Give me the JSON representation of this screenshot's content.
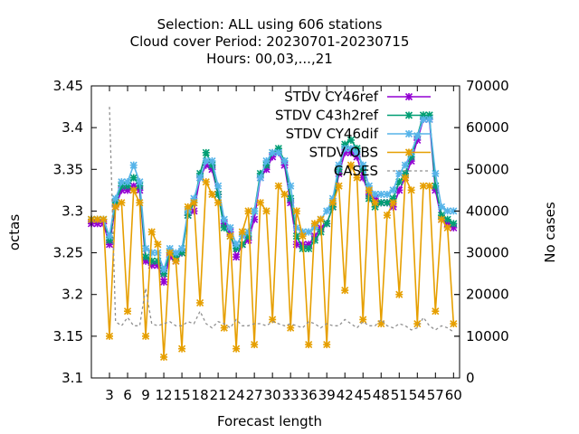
{
  "chart_data": {
    "type": "line",
    "title_lines": [
      "Selection: ALL using   606 stations",
      "Cloud cover   Period: 20230701-20230715",
      "Hours:  00,03,...,21"
    ],
    "xlabel": "Forecast length",
    "ylabel": "octas",
    "y2label": "No cases",
    "xlim": [
      0,
      61
    ],
    "ylim": [
      3.1,
      3.45
    ],
    "y2lim": [
      0,
      70000
    ],
    "xticks": [
      3,
      6,
      9,
      12,
      15,
      18,
      21,
      24,
      27,
      30,
      33,
      36,
      39,
      42,
      45,
      48,
      51,
      54,
      57,
      60
    ],
    "yticks": [
      3.1,
      3.15,
      3.2,
      3.25,
      3.3,
      3.35,
      3.4,
      3.45
    ],
    "ytick_labels": [
      "3.1",
      "3.15",
      "3.2",
      "3.25",
      "3.3",
      "3.35",
      "3.4",
      "3.45"
    ],
    "y2ticks": [
      0,
      10000,
      20000,
      30000,
      40000,
      50000,
      60000,
      70000
    ],
    "grid": false,
    "legend_position": "top-right",
    "x": [
      0,
      1,
      2,
      3,
      4,
      5,
      6,
      7,
      8,
      9,
      10,
      11,
      12,
      13,
      14,
      15,
      16,
      17,
      18,
      19,
      20,
      21,
      22,
      23,
      24,
      25,
      26,
      27,
      28,
      29,
      30,
      31,
      32,
      33,
      34,
      35,
      36,
      37,
      38,
      39,
      40,
      41,
      42,
      43,
      44,
      45,
      46,
      47,
      48,
      49,
      50,
      51,
      52,
      53,
      54,
      55,
      56,
      57,
      58,
      59,
      60
    ],
    "series": [
      {
        "name": "STDV CY46ref",
        "color": "#9400d3",
        "marker": "x",
        "axis": "y",
        "values": [
          3.285,
          3.285,
          3.285,
          3.26,
          3.305,
          3.325,
          3.325,
          3.33,
          3.325,
          3.24,
          3.235,
          3.235,
          3.215,
          3.245,
          3.24,
          3.25,
          3.295,
          3.3,
          3.34,
          3.355,
          3.35,
          3.32,
          3.285,
          3.275,
          3.245,
          3.26,
          3.265,
          3.29,
          3.34,
          3.35,
          3.365,
          3.37,
          3.355,
          3.31,
          3.26,
          3.26,
          3.26,
          3.27,
          3.28,
          3.285,
          3.305,
          3.345,
          3.37,
          3.37,
          3.365,
          3.34,
          3.32,
          3.315,
          3.31,
          3.31,
          3.305,
          3.325,
          3.34,
          3.36,
          3.385,
          3.41,
          3.41,
          3.325,
          3.29,
          3.285,
          3.28
        ]
      },
      {
        "name": "STDV C43h2ref",
        "color": "#009e73",
        "marker": "x",
        "axis": "y",
        "values": [
          3.29,
          3.29,
          3.29,
          3.265,
          3.31,
          3.33,
          3.33,
          3.34,
          3.33,
          3.245,
          3.24,
          3.24,
          3.225,
          3.25,
          3.245,
          3.25,
          3.295,
          3.31,
          3.345,
          3.37,
          3.355,
          3.32,
          3.28,
          3.27,
          3.255,
          3.26,
          3.27,
          3.3,
          3.345,
          3.355,
          3.37,
          3.375,
          3.36,
          3.315,
          3.27,
          3.255,
          3.255,
          3.265,
          3.275,
          3.285,
          3.305,
          3.35,
          3.38,
          3.385,
          3.375,
          3.35,
          3.315,
          3.305,
          3.31,
          3.31,
          3.315,
          3.335,
          3.345,
          3.365,
          3.39,
          3.415,
          3.415,
          3.33,
          3.295,
          3.29,
          3.285
        ]
      },
      {
        "name": "STDV CY46dif",
        "color": "#56b4e9",
        "marker": "x",
        "axis": "y",
        "values": [
          3.29,
          3.29,
          3.29,
          3.27,
          3.315,
          3.335,
          3.335,
          3.355,
          3.335,
          3.255,
          3.25,
          3.25,
          3.23,
          3.255,
          3.25,
          3.255,
          3.3,
          3.315,
          3.34,
          3.36,
          3.36,
          3.33,
          3.29,
          3.28,
          3.26,
          3.27,
          3.275,
          3.3,
          3.34,
          3.36,
          3.37,
          3.37,
          3.36,
          3.33,
          3.28,
          3.275,
          3.275,
          3.28,
          3.29,
          3.3,
          3.315,
          3.355,
          3.375,
          3.375,
          3.37,
          3.355,
          3.33,
          3.32,
          3.32,
          3.32,
          3.325,
          3.345,
          3.355,
          3.37,
          3.39,
          3.41,
          3.41,
          3.345,
          3.305,
          3.3,
          3.3
        ]
      },
      {
        "name": "STDV OBS",
        "color": "#e69f00",
        "marker": "x",
        "axis": "y",
        "values": [
          3.29,
          3.29,
          3.29,
          3.15,
          3.305,
          3.31,
          3.18,
          3.325,
          3.31,
          3.15,
          3.275,
          3.26,
          3.125,
          3.25,
          3.24,
          3.135,
          3.305,
          3.31,
          3.19,
          3.335,
          3.32,
          3.31,
          3.16,
          3.27,
          3.135,
          3.275,
          3.3,
          3.14,
          3.31,
          3.3,
          3.17,
          3.33,
          3.32,
          3.16,
          3.3,
          3.27,
          3.14,
          3.285,
          3.29,
          3.14,
          3.31,
          3.33,
          3.205,
          3.355,
          3.34,
          3.17,
          3.325,
          3.31,
          3.165,
          3.295,
          3.31,
          3.2,
          3.34,
          3.325,
          3.165,
          3.33,
          3.33,
          3.18,
          3.29,
          3.28,
          3.165
        ]
      },
      {
        "name": "CASES",
        "color": "#909090",
        "marker": "none",
        "dash": true,
        "axis": "y2",
        "values": [
          null,
          null,
          null,
          65000,
          13500,
          12500,
          14500,
          12500,
          12500,
          21500,
          13000,
          12500,
          13000,
          13500,
          12500,
          12500,
          13500,
          13000,
          16000,
          13000,
          12000,
          13500,
          13000,
          12000,
          14000,
          12500,
          12500,
          13000,
          13000,
          12500,
          13500,
          13000,
          12500,
          13000,
          12500,
          12000,
          13500,
          13000,
          12000,
          13000,
          12500,
          12500,
          14000,
          13000,
          12000,
          13500,
          12500,
          12500,
          14000,
          12500,
          12000,
          13000,
          12500,
          11500,
          12000,
          14500,
          12500,
          11500,
          12500,
          12000,
          11000
        ]
      }
    ]
  }
}
